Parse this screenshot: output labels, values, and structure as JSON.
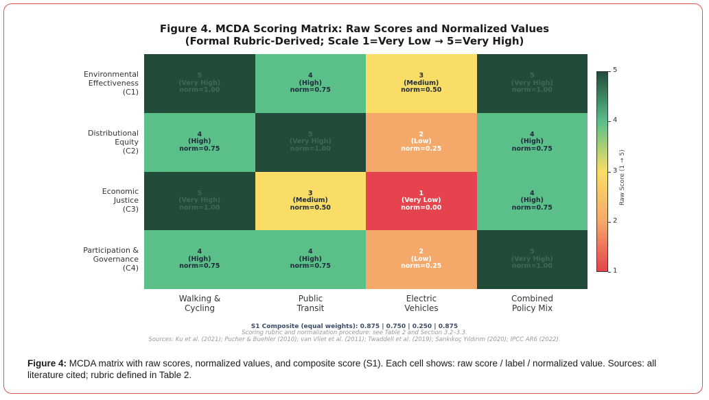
{
  "chart_data": {
    "type": "heatmap",
    "title": "Figure 4. MCDA Scoring Matrix: Raw Scores and Normalized Values",
    "subtitle": "(Formal Rubric-Derived; Scale 1=Very Low → 5=Very High)",
    "rows": [
      [
        "Environmental",
        "Effectiveness",
        "(C1)"
      ],
      [
        "Distributional",
        "Equity",
        "(C2)"
      ],
      [
        "Economic",
        "Justice",
        "(C3)"
      ],
      [
        "Participation &",
        "Governance",
        "(C4)"
      ]
    ],
    "columns": [
      [
        "Walking &",
        "Cycling"
      ],
      [
        "Public",
        "Transit"
      ],
      [
        "Electric",
        "Vehicles"
      ],
      [
        "Combined",
        "Policy Mix"
      ]
    ],
    "values": [
      [
        5,
        4,
        3,
        5
      ],
      [
        4,
        5,
        2,
        4
      ],
      [
        5,
        3,
        1,
        4
      ],
      [
        4,
        4,
        2,
        5
      ]
    ],
    "labels": [
      [
        "(Very High)",
        "(High)",
        "(Medium)",
        "(Very High)"
      ],
      [
        "(High)",
        "(Very High)",
        "(Low)",
        "(High)"
      ],
      [
        "(Very High)",
        "(Medium)",
        "(Very Low)",
        "(High)"
      ],
      [
        "(High)",
        "(High)",
        "(Low)",
        "(Very High)"
      ]
    ],
    "norms": [
      [
        "norm=1.00",
        "norm=0.75",
        "norm=0.50",
        "norm=1.00"
      ],
      [
        "norm=0.75",
        "norm=1.00",
        "norm=0.25",
        "norm=0.75"
      ],
      [
        "norm=1.00",
        "norm=0.50",
        "norm=0.00",
        "norm=0.75"
      ],
      [
        "norm=0.75",
        "norm=0.75",
        "norm=0.25",
        "norm=1.00"
      ]
    ],
    "colorbar": {
      "label": "Raw Score (1 → 5)",
      "ticks": [
        "1",
        "2",
        "3",
        "4",
        "5"
      ],
      "range": [
        1,
        5
      ]
    },
    "colors": {
      "1": "#e5434d",
      "2": "#f4a96b",
      "3": "#f9dd66",
      "4": "#5bbf8a",
      "5": "#234b3a"
    },
    "composite": "S1 Composite (equal weights): 0.875 | 0.750 | 0.250 | 0.875"
  },
  "notes": {
    "scoring": "Scoring rubric and normalization procedure: see Table 2 and Section 3.2–3.3.",
    "sources": "Sources: Ku et al. (2021); Pucher & Buehler (2010); van Vliet et al. (2011); Twaddell et al. (2019); Sankıkoç Yıldırım (2020); IPCC AR6 (2022)."
  },
  "caption": {
    "lead": "Figure 4:",
    "text": " MCDA matrix with raw scores, normalized values, and composite score (S1). Each cell shows: raw score / label / normalized value. Sources: all literature cited; rubric defined in Table 2."
  }
}
